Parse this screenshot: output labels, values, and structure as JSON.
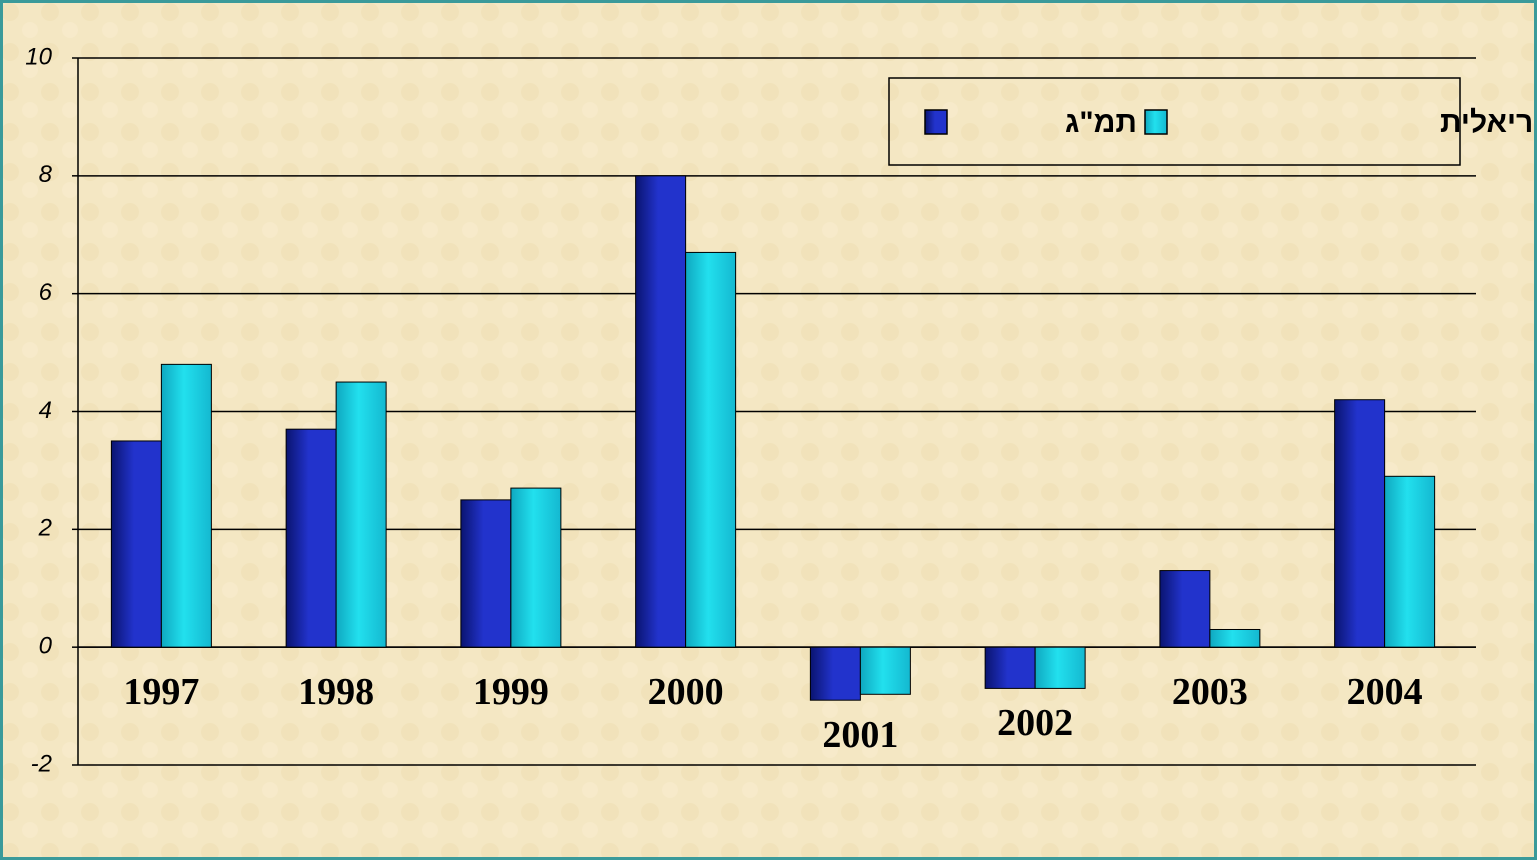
{
  "chart_data": {
    "type": "bar",
    "categories": [
      "1997",
      "1998",
      "1999",
      "2000",
      "2001",
      "2002",
      "2003",
      "2004"
    ],
    "series": [
      {
        "name": "תמ\"ג",
        "color": "#2233cc",
        "values": [
          3.5,
          3.7,
          2.5,
          8.0,
          -0.9,
          -0.7,
          1.3,
          4.2
        ]
      },
      {
        "name": "הכנסה ריאלית",
        "color": "#22e0ee",
        "values": [
          4.8,
          4.5,
          2.7,
          6.7,
          -0.8,
          -0.7,
          0.3,
          2.9
        ]
      }
    ],
    "ylim": [
      -2,
      10
    ],
    "yticks": [
      -2,
      0,
      2,
      4,
      6,
      8,
      10
    ],
    "grid": true,
    "legend": "top-right"
  }
}
